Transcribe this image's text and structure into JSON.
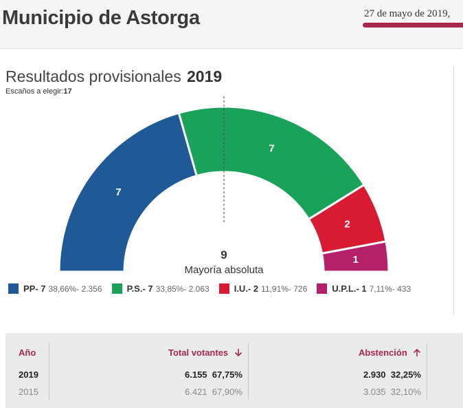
{
  "header": {
    "title": "Municipio de Astorga",
    "date": "27 de mayo de 2019,"
  },
  "results": {
    "title": "Resultados provisionales",
    "year": "2019",
    "seats_label": "Escaños a elegir:",
    "seats_value": "17"
  },
  "chart_data": {
    "type": "pie",
    "title": "Resultados provisionales 2019",
    "categories": [
      "PP",
      "P.S.",
      "I.U.",
      "U.P.L."
    ],
    "values": [
      7,
      7,
      2,
      1
    ],
    "seat_labels": [
      "7",
      "7",
      "2",
      "1"
    ],
    "colors": [
      "#1f5a96",
      "#1aa25a",
      "#d81b32",
      "#b5206a"
    ],
    "total_seats": 17,
    "majority_value": "9",
    "majority_label": "Mayoría absoluta"
  },
  "legend": [
    {
      "name": "PP- 7",
      "detail": "38,66%- 2.356",
      "color": "#1f5a96"
    },
    {
      "name": "P.S.- 7",
      "detail": "33,85%- 2.063",
      "color": "#1aa25a"
    },
    {
      "name": "I.U.- 2",
      "detail": "11,91%- 726",
      "color": "#d81b32"
    },
    {
      "name": "U.P.L.- 1",
      "detail": "7,11%- 433",
      "color": "#b5206a"
    }
  ],
  "table": {
    "headers": {
      "year": "Año",
      "voters": "Total votantes",
      "voters_icon": "arrow-down-icon",
      "abstention": "Abstención",
      "abstention_icon": "arrow-up-icon"
    },
    "rows": [
      {
        "year": "2019",
        "voters": "6.155",
        "voters_pct": "67,75%",
        "abst": "2.930",
        "abst_pct": "32,25%"
      },
      {
        "year": "2015",
        "voters": "6.421",
        "voters_pct": "67,90%",
        "abst": "3.035",
        "abst_pct": "32,10%"
      }
    ]
  }
}
